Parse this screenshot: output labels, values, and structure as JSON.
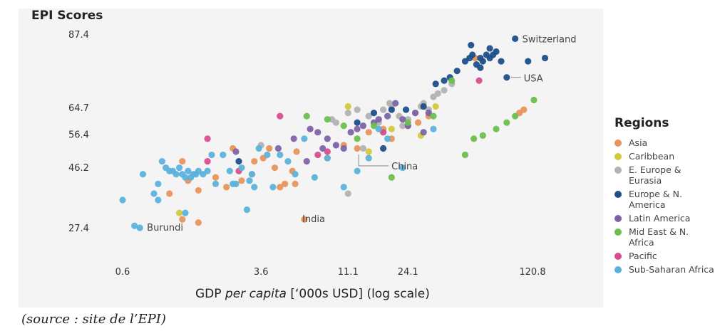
{
  "chart_data": {
    "type": "scatter",
    "title": "EPI Scores",
    "xlabel_pre": "GDP ",
    "xlabel_italic": "per capita",
    "xlabel_post": " [‘000s USD] (log scale)",
    "x_scale": "log",
    "x_ticks": [
      0.6,
      3.6,
      11.1,
      24.1,
      120.8
    ],
    "x_tick_labels": [
      "0.6",
      "3.6",
      "11.1",
      "24.1",
      "120.8"
    ],
    "y_ticks": [
      87.4,
      64.7,
      56.4,
      46.2,
      27.4
    ],
    "y_tick_labels": [
      "87.4",
      "64.7",
      "56.4",
      "46.2",
      "27.4"
    ],
    "xlim": [
      0.5,
      160
    ],
    "ylim": [
      20,
      92
    ],
    "grid": false,
    "legend_title": "Regions",
    "legend_position": "right",
    "series": [
      {
        "name": "Asia",
        "color": "#e8935a",
        "points": [
          [
            1.1,
            38
          ],
          [
            1.3,
            30
          ],
          [
            1.6,
            29
          ],
          [
            1.6,
            39
          ],
          [
            1.4,
            42
          ],
          [
            2.0,
            43
          ],
          [
            2.3,
            40
          ],
          [
            2.8,
            42
          ],
          [
            3.2,
            44
          ],
          [
            3.3,
            48
          ],
          [
            3.7,
            49
          ],
          [
            4.3,
            46
          ],
          [
            4.6,
            40
          ],
          [
            4.9,
            41
          ],
          [
            5.4,
            45
          ],
          [
            5.6,
            41
          ],
          [
            5.7,
            51
          ],
          [
            6.3,
            30
          ],
          [
            8.5,
            49
          ],
          [
            10.5,
            53
          ],
          [
            12.5,
            52
          ],
          [
            14.5,
            57
          ],
          [
            17.5,
            58
          ],
          [
            19.5,
            55
          ],
          [
            24.1,
            59
          ],
          [
            27.5,
            60
          ],
          [
            31.5,
            62
          ],
          [
            57.5,
            80
          ],
          [
            102,
            63
          ],
          [
            108,
            64
          ],
          [
            1.3,
            48
          ],
          [
            2.5,
            52
          ],
          [
            4.0,
            52
          ]
        ]
      },
      {
        "name": "Caribbean",
        "color": "#d4c83a",
        "points": [
          [
            1.25,
            32
          ],
          [
            11.1,
            65
          ],
          [
            14.5,
            51
          ],
          [
            19.5,
            58
          ],
          [
            28.5,
            56
          ],
          [
            34.5,
            65
          ]
        ]
      },
      {
        "name": "E. Europe & Eurasia",
        "color": "#b2b2b2",
        "points": [
          [
            3.6,
            53
          ],
          [
            11.1,
            63
          ],
          [
            12.5,
            64
          ],
          [
            14.5,
            62
          ],
          [
            16.5,
            60
          ],
          [
            17.5,
            64
          ],
          [
            19.5,
            65
          ],
          [
            21.5,
            62
          ],
          [
            22.5,
            59
          ],
          [
            24.1,
            61
          ],
          [
            26.5,
            63
          ],
          [
            28.5,
            65
          ],
          [
            29.5,
            66
          ],
          [
            31.5,
            64
          ],
          [
            33.5,
            68
          ],
          [
            35.5,
            69
          ],
          [
            38.5,
            70
          ],
          [
            42.5,
            72
          ],
          [
            11.1,
            38
          ],
          [
            13.5,
            52
          ],
          [
            9.5,
            60
          ],
          [
            9.0,
            61
          ],
          [
            19.0,
            66
          ]
        ]
      },
      {
        "name": "Europe & N. America",
        "color": "#1e4f8a",
        "points": [
          [
            12.5,
            60
          ],
          [
            15.5,
            63
          ],
          [
            19.5,
            64
          ],
          [
            23.5,
            64
          ],
          [
            29.5,
            65
          ],
          [
            34.5,
            72
          ],
          [
            38.5,
            73
          ],
          [
            41.5,
            74
          ],
          [
            45.5,
            76
          ],
          [
            50.5,
            79
          ],
          [
            53.5,
            80
          ],
          [
            55.5,
            81
          ],
          [
            58.5,
            78
          ],
          [
            61.5,
            80
          ],
          [
            63.5,
            79
          ],
          [
            66.5,
            81
          ],
          [
            69.5,
            80
          ],
          [
            72.5,
            81
          ],
          [
            75.5,
            82
          ],
          [
            80.5,
            79
          ],
          [
            86.5,
            74
          ],
          [
            96.5,
            86
          ],
          [
            114,
            79
          ],
          [
            142,
            80
          ],
          [
            69.5,
            83
          ],
          [
            54.5,
            84
          ],
          [
            61.5,
            77
          ],
          [
            17.5,
            52
          ],
          [
            2.7,
            48
          ]
        ]
      },
      {
        "name": "Latin America",
        "color": "#7d63a6",
        "points": [
          [
            2.6,
            51
          ],
          [
            4.5,
            52
          ],
          [
            5.5,
            55
          ],
          [
            6.5,
            48
          ],
          [
            7.5,
            57
          ],
          [
            8.5,
            55
          ],
          [
            9.5,
            53
          ],
          [
            10.5,
            52
          ],
          [
            11.5,
            57
          ],
          [
            12.5,
            58
          ],
          [
            13.5,
            59
          ],
          [
            15.5,
            60
          ],
          [
            16.5,
            61
          ],
          [
            18.5,
            62
          ],
          [
            20.5,
            66
          ],
          [
            22.5,
            61
          ],
          [
            24.1,
            59
          ],
          [
            26.5,
            63
          ],
          [
            29.5,
            57
          ],
          [
            31.5,
            63
          ],
          [
            6.8,
            58
          ],
          [
            8.0,
            52
          ]
        ]
      },
      {
        "name": "Mid East & N. Africa",
        "color": "#6cbf4c",
        "points": [
          [
            6.5,
            62
          ],
          [
            8.5,
            61
          ],
          [
            10.5,
            59
          ],
          [
            12.5,
            55
          ],
          [
            15.5,
            59
          ],
          [
            17.5,
            57
          ],
          [
            19.5,
            43
          ],
          [
            24.1,
            60
          ],
          [
            33.5,
            62
          ],
          [
            42.5,
            73
          ],
          [
            50.5,
            50
          ],
          [
            56.5,
            55
          ],
          [
            63.5,
            56
          ],
          [
            75.5,
            58
          ],
          [
            86.5,
            60
          ],
          [
            96.5,
            62
          ],
          [
            123,
            67
          ]
        ]
      },
      {
        "name": "Pacific",
        "color": "#d94d8c",
        "points": [
          [
            1.8,
            55
          ],
          [
            1.8,
            48
          ],
          [
            2.7,
            45
          ],
          [
            4.6,
            62
          ],
          [
            7.5,
            50
          ],
          [
            8.5,
            51
          ],
          [
            17.5,
            57
          ],
          [
            60.5,
            73
          ]
        ]
      },
      {
        "name": "Sub-Saharan Africa",
        "color": "#5bb2dc",
        "points": [
          [
            0.6,
            36
          ],
          [
            0.7,
            28
          ],
          [
            0.75,
            27.4
          ],
          [
            0.78,
            44
          ],
          [
            0.9,
            38
          ],
          [
            0.95,
            41
          ],
          [
            1.0,
            48
          ],
          [
            1.05,
            46
          ],
          [
            1.1,
            45
          ],
          [
            1.15,
            45
          ],
          [
            1.2,
            44
          ],
          [
            1.25,
            46
          ],
          [
            1.3,
            44
          ],
          [
            1.35,
            43
          ],
          [
            1.4,
            45
          ],
          [
            1.45,
            43
          ],
          [
            1.5,
            44
          ],
          [
            1.55,
            44
          ],
          [
            1.6,
            45
          ],
          [
            1.7,
            44
          ],
          [
            1.8,
            45
          ],
          [
            2.0,
            41
          ],
          [
            2.2,
            50
          ],
          [
            2.4,
            45
          ],
          [
            2.6,
            41
          ],
          [
            2.8,
            46
          ],
          [
            3.0,
            33
          ],
          [
            3.1,
            42
          ],
          [
            3.3,
            40
          ],
          [
            3.5,
            52
          ],
          [
            3.9,
            50
          ],
          [
            4.2,
            40
          ],
          [
            4.6,
            50
          ],
          [
            5.1,
            48
          ],
          [
            5.6,
            44
          ],
          [
            6.3,
            55
          ],
          [
            7.2,
            43
          ],
          [
            8.5,
            49
          ],
          [
            10.5,
            40
          ],
          [
            12.5,
            45
          ],
          [
            14.5,
            49
          ],
          [
            16.5,
            58
          ],
          [
            18.5,
            55
          ],
          [
            22.5,
            46
          ],
          [
            33.5,
            58
          ],
          [
            1.35,
            32
          ],
          [
            0.95,
            36
          ],
          [
            2.5,
            41
          ],
          [
            1.9,
            50
          ],
          [
            3.2,
            44
          ]
        ]
      }
    ],
    "annotations": [
      {
        "text": "Switzerland",
        "x": 96.5,
        "y": 86
      },
      {
        "text": "USA",
        "x": 86.5,
        "y": 74
      },
      {
        "text": "China",
        "x": 12.5,
        "y": 51
      },
      {
        "text": "India",
        "x": 5.6,
        "y": 30
      },
      {
        "text": "Burundi",
        "x": 0.75,
        "y": 27.4
      }
    ]
  },
  "caption": "(source : site de l’EPI)"
}
